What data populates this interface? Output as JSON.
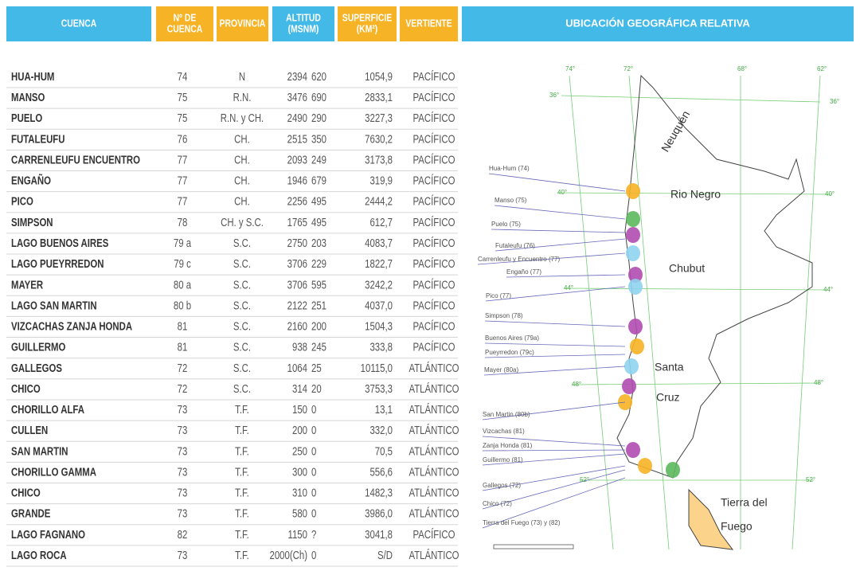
{
  "header": {
    "columns": [
      [
        "CUENCA"
      ],
      [
        "Nº DE",
        "CUENCA"
      ],
      [
        "PROVINCIA"
      ],
      [
        "ALTITUD",
        "(MSNM)"
      ],
      [
        "SUPERFICIE",
        "(KM²)"
      ],
      [
        "VERTIENTE"
      ],
      [
        "UBICACIÓN GEOGRÁFICA RELATIVA"
      ]
    ]
  },
  "table": {
    "rows": [
      [
        "HUA-HUM",
        "74",
        "N",
        "2394",
        "620",
        "1054,9",
        "PACÍFICO"
      ],
      [
        "MANSO",
        "75",
        "R.N.",
        "3476",
        "690",
        "2833,1",
        "PACÍFICO"
      ],
      [
        "PUELO",
        "75",
        "R.N. y CH.",
        "2490",
        "290",
        "3227,3",
        "PACÍFICO"
      ],
      [
        "FUTALEUFU",
        "76",
        "CH.",
        "2515",
        "350",
        "7630,2",
        "PACÍFICO"
      ],
      [
        "CARRENLEUFU ENCUENTRO",
        "77",
        "CH.",
        "2093",
        "249",
        "3173,8",
        "PACÍFICO"
      ],
      [
        "ENGAÑO",
        "77",
        "CH.",
        "1946",
        "679",
        "319,9",
        "PACÍFICO"
      ],
      [
        "PICO",
        "77",
        "CH.",
        "2256",
        "495",
        "2444,2",
        "PACÍFICO"
      ],
      [
        "SIMPSON",
        "78",
        "CH. y S.C.",
        "1765",
        "495",
        "612,7",
        "PACÍFICO"
      ],
      [
        "LAGO BUENOS AIRES",
        "79 a",
        "S.C.",
        "2750",
        "203",
        "4083,7",
        "PACÍFICO"
      ],
      [
        "LAGO PUEYRREDON",
        "79 c",
        "S.C.",
        "3706",
        "229",
        "1822,7",
        "PACÍFICO"
      ],
      [
        "MAYER",
        "80 a",
        "S.C.",
        "3706",
        "595",
        "3242,2",
        "PACÍFICO"
      ],
      [
        "LAGO SAN MARTIN",
        "80 b",
        "S.C.",
        "2122",
        "251",
        "4037,0",
        "PACÍFICO"
      ],
      [
        "VIZCACHAS ZANJA HONDA",
        "81",
        "S.C.",
        "2160",
        "200",
        "1504,3",
        "PACÍFICO"
      ],
      [
        "GUILLERMO",
        "81",
        "S.C.",
        "938",
        "245",
        "333,8",
        "PACÍFICO"
      ],
      [
        "GALLEGOS",
        "72",
        "S.C.",
        "1064",
        "25",
        "10115,0",
        "ATLÁNTICO"
      ],
      [
        "CHICO",
        "72",
        "S.C.",
        "314",
        "20",
        "3753,3",
        "ATLÁNTICO"
      ],
      [
        "CHORILLO ALFA",
        "73",
        "T.F.",
        "150",
        "0",
        "13,1",
        "ATLÁNTICO"
      ],
      [
        "CULLEN",
        "73",
        "T.F.",
        "200",
        "0",
        "332,0",
        "ATLÁNTICO"
      ],
      [
        "SAN MARTIN",
        "73",
        "T.F.",
        "250",
        "0",
        "70,5",
        "ATLÁNTICO"
      ],
      [
        "CHORILLO GAMMA",
        "73",
        "T.F.",
        "300",
        "0",
        "556,6",
        "ATLÁNTICO"
      ],
      [
        "CHICO",
        "73",
        "T.F.",
        "310",
        "0",
        "1482,3",
        "ATLÁNTICO"
      ],
      [
        "GRANDE",
        "73",
        "T.F.",
        "580",
        "0",
        "3986,0",
        "ATLÁNTICO"
      ],
      [
        "LAGO FAGNANO",
        "82",
        "T.F.",
        "1150",
        "?",
        "3041,8",
        "PACÍFICO"
      ],
      [
        "LAGO ROCA",
        "73",
        "T.F.",
        "2000(Ch)",
        "0",
        "S/D",
        "ATLÁNTICO"
      ]
    ]
  },
  "map": {
    "labels": [
      "Hua-Hum (74)",
      "Manso (75)",
      "Puelo (75)",
      "Futaleufu (76)",
      "Carrenleufu y Encuentro (77)",
      "Engaño (77)",
      "Pico (77)",
      "Simpson (78)",
      "Buenos Aires (79a)",
      "Pueyrredon (79c)",
      "Mayer (80a)",
      "San Martin (80b)",
      "Vizcachas (81)",
      "Zanja Honda (81)",
      "Guillermo (81)",
      "Gallegos (72)",
      "Chico (72)",
      "Tierra del Fuego (73) y (82)"
    ],
    "regions": [
      "Neuquén",
      "Rio Negro",
      "Chubut",
      "Santa",
      "Cruz",
      "Tierra del",
      "Fuego"
    ],
    "grid_labels": [
      "74°",
      "72°",
      "68°",
      "62°",
      "36°",
      "36°",
      "40°",
      "40°",
      "44°",
      "44°",
      "48°",
      "48°",
      "52°",
      "52°"
    ]
  }
}
